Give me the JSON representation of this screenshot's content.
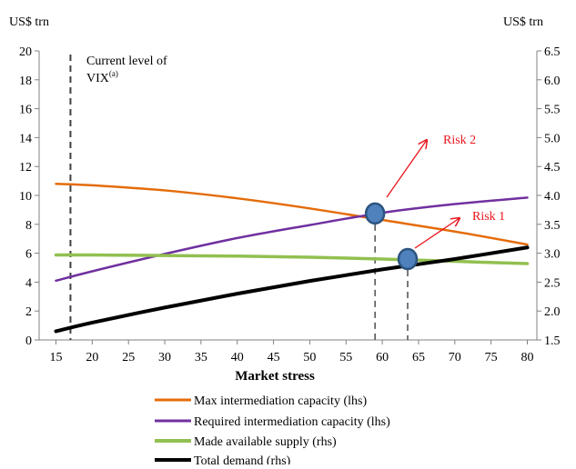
{
  "chart_data": {
    "type": "line",
    "title": "",
    "xlabel": "Market stress",
    "ylabel_left": "US$ trn",
    "ylabel_right": "US$ trn",
    "x_ticks": [
      15,
      20,
      25,
      30,
      35,
      40,
      45,
      50,
      55,
      60,
      65,
      70,
      75,
      80
    ],
    "xlim": [
      15,
      80
    ],
    "ylim_left": [
      0,
      20
    ],
    "ylim_right": [
      1.5,
      6.5
    ],
    "y_ticks_left": [
      "0",
      "2",
      "4",
      "6",
      "8",
      "10",
      "12",
      "14",
      "16",
      "18",
      "20"
    ],
    "y_ticks_right": [
      "1.5",
      "2.0",
      "2.5",
      "3.0",
      "3.5",
      "4.0",
      "4.5",
      "5.0",
      "5.5",
      "6.0",
      "6.5"
    ],
    "grid": false,
    "legend_position": "bottom",
    "series": [
      {
        "name": "Max intermediation capacity (lhs)",
        "axis": "left",
        "color": "#e46c0a",
        "x": [
          15,
          20,
          30,
          40,
          50,
          60,
          70,
          80
        ],
        "y": [
          10.8,
          10.7,
          10.35,
          9.8,
          9.1,
          8.3,
          7.5,
          6.6
        ]
      },
      {
        "name": "Required intermediation capacity (lhs)",
        "axis": "left",
        "color": "#7030a0",
        "x": [
          15,
          20,
          30,
          40,
          50,
          60,
          70,
          80
        ],
        "y": [
          4.1,
          4.75,
          5.95,
          7.05,
          7.95,
          8.8,
          9.4,
          9.85
        ]
      },
      {
        "name": "Made available supply (rhs)",
        "axis": "right",
        "color": "#92c050",
        "x": [
          15,
          20,
          30,
          40,
          50,
          60,
          70,
          80
        ],
        "y": [
          2.97,
          2.97,
          2.96,
          2.95,
          2.93,
          2.9,
          2.86,
          2.82
        ]
      },
      {
        "name": "Total demand (rhs)",
        "axis": "right",
        "color": "#000000",
        "x": [
          15,
          20,
          30,
          40,
          50,
          60,
          70,
          80
        ],
        "y": [
          1.65,
          1.8,
          2.06,
          2.3,
          2.52,
          2.72,
          2.9,
          3.1
        ]
      }
    ],
    "vertical_lines": [
      {
        "x": 17,
        "label_line1": "Current level of",
        "label_line2_text": "VIX",
        "label_line2_sup": "(a)"
      },
      {
        "x": 59
      },
      {
        "x": 63.5
      }
    ],
    "markers": [
      {
        "x": 59,
        "y": 8.75,
        "axis": "left"
      },
      {
        "x": 63.5,
        "y": 2.9,
        "axis": "right"
      }
    ],
    "annotations": [
      {
        "label": "Risk 2",
        "color": "#e8141c"
      },
      {
        "label": "Risk 1",
        "color": "#e8141c"
      }
    ]
  }
}
